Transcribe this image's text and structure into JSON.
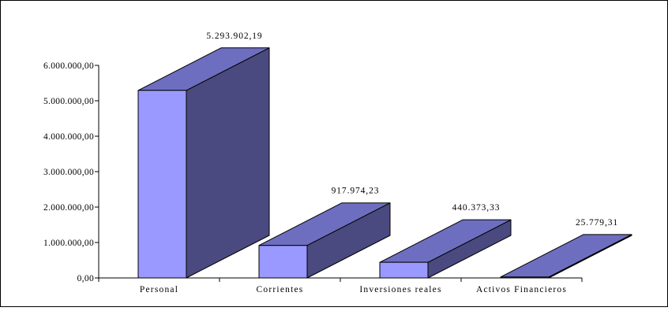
{
  "chart_data": {
    "type": "bar",
    "style": "3d",
    "title": "",
    "xlabel": "",
    "ylabel": "",
    "categories": [
      "Personal",
      "Corrientes",
      "Inversiones reales",
      "Activos Financieros"
    ],
    "values": [
      5293902.19,
      917974.23,
      440373.33,
      25779.31
    ],
    "data_labels": [
      "5.293.902,19",
      "917.974,23",
      "440.373,33",
      "25.779,31"
    ],
    "y_ticks": [
      0,
      1000000,
      2000000,
      3000000,
      4000000,
      5000000,
      6000000
    ],
    "y_tick_labels": [
      "0,00",
      "1.000.000,00",
      "2.000.000,00",
      "3.000.000,00",
      "4.000.000,00",
      "5.000.000,00",
      "6.000.000,00"
    ],
    "ylim": [
      0,
      6000000
    ],
    "grid": false,
    "legend": "none",
    "colors": {
      "front": "#9999ff",
      "top": "#6e6ec0",
      "side": "#4a4a80",
      "edge": "#000000",
      "frame": "#000000"
    }
  }
}
